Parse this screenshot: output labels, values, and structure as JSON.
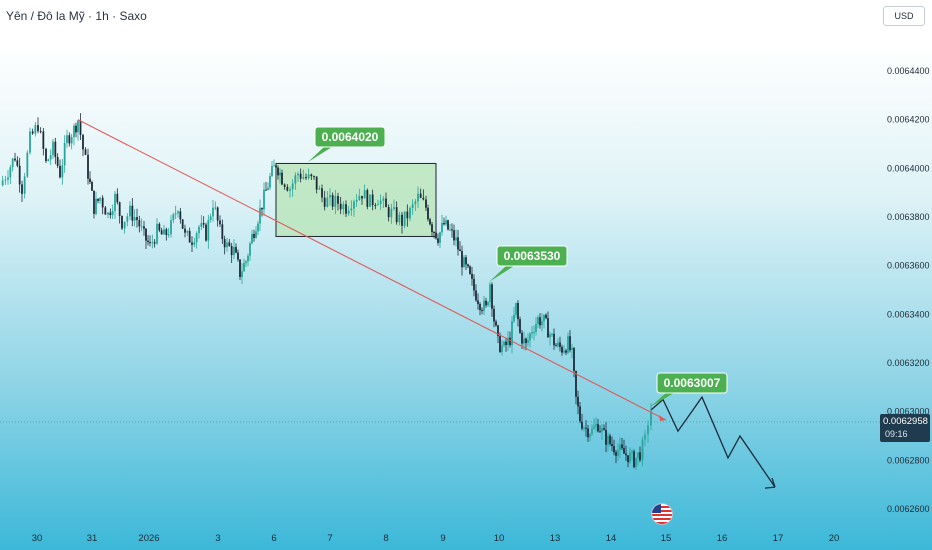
{
  "header": {
    "symbol": "Yên / Đô la Mỹ",
    "sep1": "·",
    "interval": "1h",
    "sep2": "·",
    "source": "Saxo"
  },
  "currency_button": "USD",
  "current_price": {
    "value": "0.0062958",
    "countdown": "09:16",
    "color": "#1f3b4d"
  },
  "event_marker": {
    "icon": "us-flag-icon"
  },
  "colors": {
    "up": "#26a69a",
    "down": "#1e2a38",
    "trendline": "#e05a5a",
    "callout": "#4caf50",
    "box": "#b7e4b6",
    "projection": "#1c2b3a"
  },
  "chart_data": {
    "type": "candlestick",
    "title": "",
    "ylim": [
      0.00625,
      0.00646
    ],
    "xlabel": "",
    "ylabel": "",
    "y_ticks": [
      "0.0064400",
      "0.0064200",
      "0.0064000",
      "0.0063800",
      "0.0063600",
      "0.0063400",
      "0.0063200",
      "0.0063000",
      "0.0062800",
      "0.0062600"
    ],
    "x_ticks": [
      "30",
      "31",
      "2026",
      "3",
      "6",
      "7",
      "8",
      "9",
      "10",
      "13",
      "14",
      "15",
      "16",
      "17",
      "20"
    ],
    "price_path": [
      [
        0,
        0.006393
      ],
      [
        8,
        0.006399
      ],
      [
        15,
        0.006405
      ],
      [
        22,
        0.006392
      ],
      [
        30,
        0.006412
      ],
      [
        38,
        0.006418
      ],
      [
        46,
        0.006402
      ],
      [
        53,
        0.006408
      ],
      [
        60,
        0.006398
      ],
      [
        67,
        0.006412
      ],
      [
        74,
        0.006416
      ],
      [
        78,
        0.00642
      ],
      [
        83,
        0.006408
      ],
      [
        88,
        0.006398
      ],
      [
        94,
        0.006384
      ],
      [
        100,
        0.006388
      ],
      [
        108,
        0.006381
      ],
      [
        115,
        0.006388
      ],
      [
        122,
        0.006378
      ],
      [
        130,
        0.006382
      ],
      [
        137,
        0.006379
      ],
      [
        144,
        0.006372
      ],
      [
        150,
        0.006368
      ],
      [
        157,
        0.006374
      ],
      [
        164,
        0.006372
      ],
      [
        171,
        0.006376
      ],
      [
        178,
        0.006385
      ],
      [
        185,
        0.006372
      ],
      [
        192,
        0.006371
      ],
      [
        199,
        0.006376
      ],
      [
        206,
        0.006373
      ],
      [
        213,
        0.006386
      ],
      [
        220,
        0.006374
      ],
      [
        227,
        0.006368
      ],
      [
        234,
        0.006366
      ],
      [
        240,
        0.006357
      ],
      [
        246,
        0.006362
      ],
      [
        252,
        0.006372
      ],
      [
        258,
        0.00638
      ],
      [
        264,
        0.006388
      ],
      [
        270,
        0.006396
      ],
      [
        276,
        0.006402
      ],
      [
        282,
        0.006396
      ],
      [
        290,
        0.006392
      ],
      [
        298,
        0.006398
      ],
      [
        306,
        0.006396
      ],
      [
        314,
        0.006395
      ],
      [
        322,
        0.006388
      ],
      [
        330,
        0.006386
      ],
      [
        338,
        0.006386
      ],
      [
        346,
        0.006384
      ],
      [
        354,
        0.006388
      ],
      [
        362,
        0.00639
      ],
      [
        370,
        0.006386
      ],
      [
        378,
        0.006388
      ],
      [
        386,
        0.006383
      ],
      [
        394,
        0.006381
      ],
      [
        402,
        0.006378
      ],
      [
        410,
        0.006382
      ],
      [
        418,
        0.006388
      ],
      [
        426,
        0.006384
      ],
      [
        432,
        0.006376
      ],
      [
        438,
        0.006372
      ],
      [
        444,
        0.006377
      ],
      [
        450,
        0.006374
      ],
      [
        456,
        0.00637
      ],
      [
        462,
        0.006362
      ],
      [
        468,
        0.006357
      ],
      [
        474,
        0.00635
      ],
      [
        480,
        0.006345
      ],
      [
        486,
        0.006342
      ],
      [
        490,
        0.006353
      ],
      [
        494,
        0.006338
      ],
      [
        498,
        0.006328
      ],
      [
        504,
        0.006326
      ],
      [
        510,
        0.00633
      ],
      [
        516,
        0.006343
      ],
      [
        520,
        0.006332
      ],
      [
        526,
        0.006327
      ],
      [
        532,
        0.006334
      ],
      [
        538,
        0.006338
      ],
      [
        544,
        0.006337
      ],
      [
        550,
        0.006332
      ],
      [
        556,
        0.006327
      ],
      [
        562,
        0.006326
      ],
      [
        568,
        0.006328
      ],
      [
        572,
        0.006323
      ],
      [
        576,
        0.006305
      ],
      [
        580,
        0.006297
      ],
      [
        586,
        0.006293
      ],
      [
        592,
        0.006292
      ],
      [
        598,
        0.006295
      ],
      [
        604,
        0.00629
      ],
      [
        610,
        0.006287
      ],
      [
        616,
        0.006285
      ],
      [
        622,
        0.006283
      ],
      [
        628,
        0.006282
      ],
      [
        634,
        0.00628
      ],
      [
        640,
        0.006283
      ],
      [
        645,
        0.006288
      ],
      [
        648,
        0.006296
      ],
      [
        651,
        0.0063007
      ]
    ],
    "callouts": [
      {
        "label": "0.0064020",
        "value": 0.006402
      },
      {
        "label": "0.0063530",
        "value": 0.006353
      },
      {
        "label": "0.0063007",
        "value": 0.0063007
      }
    ],
    "consolidation_box": {
      "from_x": 276,
      "to_x": 436,
      "high": 0.006402,
      "low": 0.006372
    },
    "trendline": {
      "from": [
        78,
        0.00642
      ],
      "to": [
        666,
        0.0062966
      ]
    },
    "projection_path": [
      [
        651,
        0.0063007
      ],
      [
        663,
        0.006305
      ],
      [
        678,
        0.006292
      ],
      [
        702,
        0.006306
      ],
      [
        728,
        0.006281
      ],
      [
        740,
        0.00629
      ],
      [
        775,
        0.006269
      ]
    ],
    "current_level": 0.0062958,
    "grid": false,
    "legend": "none"
  }
}
